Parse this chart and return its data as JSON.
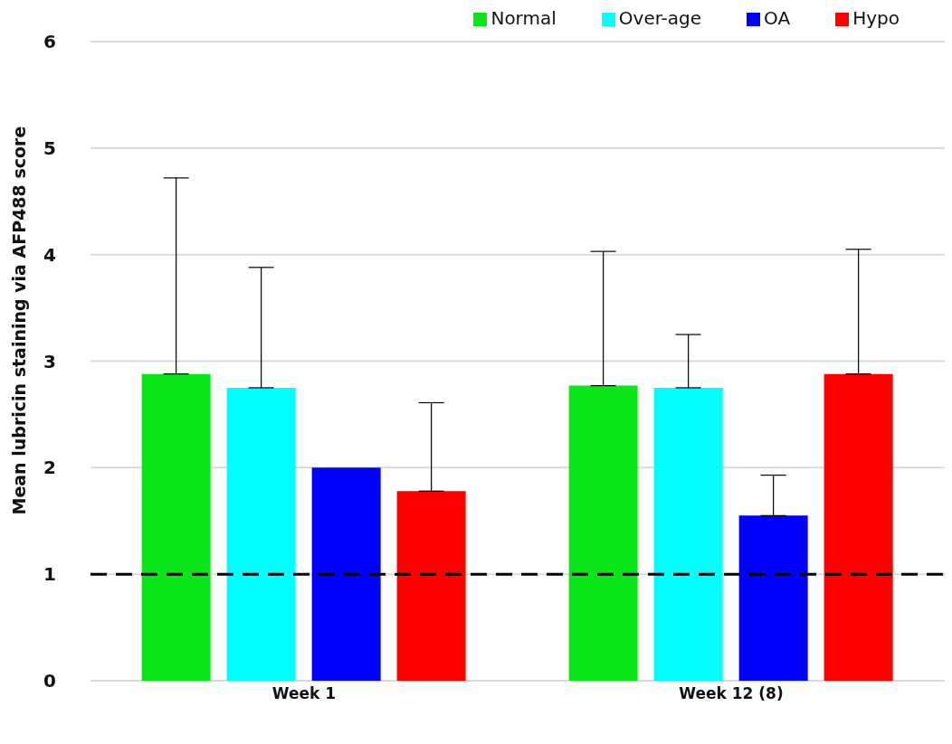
{
  "chart_data": {
    "type": "bar",
    "ylabel": "Mean lubricin staining via AFP488 score",
    "categories": [
      "Week 1",
      "Week 12 (8)"
    ],
    "series": [
      {
        "name": "Normal",
        "color": "#0be61b",
        "values": [
          2.88,
          2.77
        ],
        "errors": [
          [
            2.88,
            4.72
          ],
          [
            2.77,
            4.03
          ]
        ]
      },
      {
        "name": "Over-age",
        "color": "#00ffff",
        "values": [
          2.75,
          2.75
        ],
        "errors": [
          [
            2.75,
            3.88
          ],
          [
            2.75,
            3.25
          ]
        ]
      },
      {
        "name": "OA",
        "color": "#0000ff",
        "values": [
          2.0,
          1.55
        ],
        "errors": [
          null,
          [
            1.55,
            1.93
          ]
        ]
      },
      {
        "name": "Hypo",
        "color": "#ff0000",
        "values": [
          1.78,
          2.88
        ],
        "errors": [
          [
            1.78,
            2.61
          ],
          [
            2.88,
            4.05
          ]
        ]
      }
    ],
    "ylim": [
      0,
      6
    ],
    "yticks": [
      0,
      1,
      2,
      3,
      4,
      5,
      6
    ],
    "grid": "y",
    "legend": "top right",
    "ref_lines": [
      {
        "axis": "y",
        "value": 1,
        "color": "#000000",
        "line_style": "dashed"
      }
    ]
  }
}
